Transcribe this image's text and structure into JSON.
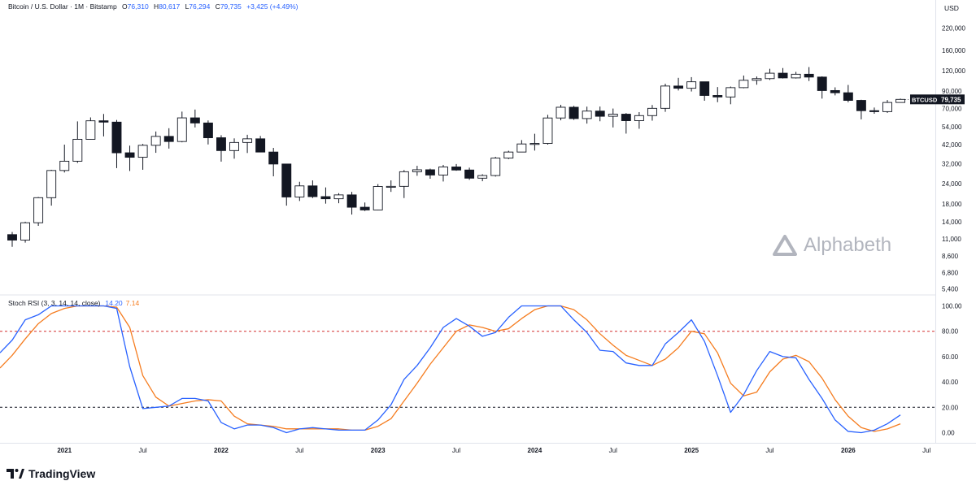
{
  "header": {
    "symbol_desc": "Bitcoin / U.S. Dollar · 1M · Bitstamp",
    "o_label": "O",
    "o_val": "76,310",
    "h_label": "H",
    "h_val": "80,617",
    "l_label": "L",
    "l_val": "76,294",
    "c_label": "C",
    "c_val": "79,735",
    "change": "+3,425 (+4.49%)"
  },
  "price_axis": {
    "unit": "USD",
    "ticks": [
      "220,000",
      "160,000",
      "120,000",
      "90,000",
      "70,000",
      "54,000",
      "42,000",
      "32,000",
      "24,000",
      "18,000",
      "14,000",
      "11,000",
      "8,600",
      "6,800",
      "5,400"
    ]
  },
  "price_label": {
    "symbol": "BTCUSD",
    "value": "79,735"
  },
  "indicator": {
    "title": "Stoch RSI (3, 3, 14, 14, close)",
    "k_value": "14.20",
    "d_value": "7.14",
    "ticks": [
      "100.00",
      "80.00",
      "60.00",
      "40.00",
      "20.00",
      "0.00"
    ]
  },
  "time_axis": [
    "2021",
    "Jul",
    "2022",
    "Jul",
    "2023",
    "Jul",
    "2024",
    "Jul",
    "2025",
    "Jul",
    "2026",
    "Jul"
  ],
  "watermark": "Alphabeth",
  "footer": {
    "brand": "TradingView"
  },
  "colors": {
    "bull": "#ffffff",
    "bear": "#131722",
    "k_line": "#2962ff",
    "d_line": "#f57c1f",
    "band_upper": "#d32f2f",
    "band_lower": "#131722"
  },
  "chart_data": [
    {
      "type": "candlestick",
      "title": "Bitcoin / U.S. Dollar · 1M · Bitstamp",
      "scale": "log",
      "ylim": [
        5000,
        260000
      ],
      "x_start": "2020-09",
      "candles": [
        {
          "t": "2020-09",
          "o": 11650,
          "h": 12100,
          "l": 9800,
          "c": 10780
        },
        {
          "t": "2020-10",
          "o": 10780,
          "h": 14000,
          "l": 10400,
          "c": 13800
        },
        {
          "t": "2020-11",
          "o": 13800,
          "h": 19900,
          "l": 13200,
          "c": 19700
        },
        {
          "t": "2020-12",
          "o": 19700,
          "h": 29300,
          "l": 17600,
          "c": 29000
        },
        {
          "t": "2021-01",
          "o": 29000,
          "h": 41900,
          "l": 28200,
          "c": 33100
        },
        {
          "t": "2021-02",
          "o": 33100,
          "h": 58300,
          "l": 32300,
          "c": 45200
        },
        {
          "t": "2021-03",
          "o": 45200,
          "h": 61700,
          "l": 45100,
          "c": 58800
        },
        {
          "t": "2021-04",
          "o": 58800,
          "h": 64800,
          "l": 47100,
          "c": 57700
        },
        {
          "t": "2021-05",
          "o": 57700,
          "h": 59500,
          "l": 30000,
          "c": 37300
        },
        {
          "t": "2021-06",
          "o": 37300,
          "h": 41300,
          "l": 28800,
          "c": 35000
        },
        {
          "t": "2021-07",
          "o": 35000,
          "h": 42300,
          "l": 29300,
          "c": 41500
        },
        {
          "t": "2021-08",
          "o": 41500,
          "h": 50500,
          "l": 37300,
          "c": 47100
        },
        {
          "t": "2021-09",
          "o": 47100,
          "h": 52900,
          "l": 39600,
          "c": 43800
        },
        {
          "t": "2021-10",
          "o": 43800,
          "h": 67000,
          "l": 43300,
          "c": 61300
        },
        {
          "t": "2021-11",
          "o": 61300,
          "h": 69000,
          "l": 53500,
          "c": 57000
        },
        {
          "t": "2021-12",
          "o": 57000,
          "h": 59100,
          "l": 42000,
          "c": 46200
        },
        {
          "t": "2022-01",
          "o": 46200,
          "h": 47900,
          "l": 32900,
          "c": 38500
        },
        {
          "t": "2022-02",
          "o": 38500,
          "h": 45800,
          "l": 34300,
          "c": 43200
        },
        {
          "t": "2022-03",
          "o": 43200,
          "h": 48200,
          "l": 37200,
          "c": 45500
        },
        {
          "t": "2022-04",
          "o": 45500,
          "h": 47400,
          "l": 37600,
          "c": 37700
        },
        {
          "t": "2022-05",
          "o": 37700,
          "h": 40000,
          "l": 26700,
          "c": 31800
        },
        {
          "t": "2022-06",
          "o": 31800,
          "h": 31900,
          "l": 17600,
          "c": 19900
        },
        {
          "t": "2022-07",
          "o": 19900,
          "h": 24700,
          "l": 18800,
          "c": 23300
        },
        {
          "t": "2022-08",
          "o": 23300,
          "h": 25200,
          "l": 19600,
          "c": 20000
        },
        {
          "t": "2022-09",
          "o": 20000,
          "h": 22800,
          "l": 18100,
          "c": 19400
        },
        {
          "t": "2022-10",
          "o": 19400,
          "h": 21000,
          "l": 18200,
          "c": 20500
        },
        {
          "t": "2022-11",
          "o": 20500,
          "h": 21400,
          "l": 15500,
          "c": 17200
        },
        {
          "t": "2022-12",
          "o": 17200,
          "h": 18400,
          "l": 16300,
          "c": 16550
        },
        {
          "t": "2023-01",
          "o": 16550,
          "h": 23900,
          "l": 16500,
          "c": 23100
        },
        {
          "t": "2023-02",
          "o": 23100,
          "h": 25200,
          "l": 21400,
          "c": 23150
        },
        {
          "t": "2023-03",
          "o": 23150,
          "h": 29200,
          "l": 19600,
          "c": 28500
        },
        {
          "t": "2023-04",
          "o": 28500,
          "h": 31000,
          "l": 26900,
          "c": 29300
        },
        {
          "t": "2023-05",
          "o": 29300,
          "h": 29800,
          "l": 25800,
          "c": 27200
        },
        {
          "t": "2023-06",
          "o": 27200,
          "h": 31400,
          "l": 24800,
          "c": 30500
        },
        {
          "t": "2023-07",
          "o": 30500,
          "h": 31800,
          "l": 28900,
          "c": 29200
        },
        {
          "t": "2023-08",
          "o": 29200,
          "h": 30200,
          "l": 25400,
          "c": 26000
        },
        {
          "t": "2023-09",
          "o": 26000,
          "h": 27500,
          "l": 24900,
          "c": 27000
        },
        {
          "t": "2023-10",
          "o": 27000,
          "h": 35200,
          "l": 26600,
          "c": 34600
        },
        {
          "t": "2023-11",
          "o": 34600,
          "h": 38400,
          "l": 34100,
          "c": 37700
        },
        {
          "t": "2023-12",
          "o": 37700,
          "h": 44700,
          "l": 37600,
          "c": 42300
        },
        {
          "t": "2024-01",
          "o": 42300,
          "h": 48900,
          "l": 38500,
          "c": 42600
        },
        {
          "t": "2024-02",
          "o": 42600,
          "h": 64000,
          "l": 41900,
          "c": 61200
        },
        {
          "t": "2024-03",
          "o": 61200,
          "h": 73800,
          "l": 59200,
          "c": 71300
        },
        {
          "t": "2024-04",
          "o": 71300,
          "h": 72700,
          "l": 59600,
          "c": 60700
        },
        {
          "t": "2024-05",
          "o": 60700,
          "h": 71900,
          "l": 56500,
          "c": 67500
        },
        {
          "t": "2024-06",
          "o": 67500,
          "h": 72000,
          "l": 58400,
          "c": 62700
        },
        {
          "t": "2024-07",
          "o": 62700,
          "h": 70000,
          "l": 53500,
          "c": 64600
        },
        {
          "t": "2024-08",
          "o": 64600,
          "h": 65600,
          "l": 49000,
          "c": 58900
        },
        {
          "t": "2024-09",
          "o": 58900,
          "h": 66500,
          "l": 52500,
          "c": 63300
        },
        {
          "t": "2024-10",
          "o": 63300,
          "h": 73600,
          "l": 58900,
          "c": 70200
        },
        {
          "t": "2024-11",
          "o": 70200,
          "h": 99600,
          "l": 66800,
          "c": 96400
        },
        {
          "t": "2024-12",
          "o": 96400,
          "h": 108300,
          "l": 90500,
          "c": 93400
        },
        {
          "t": "2025-01",
          "o": 93400,
          "h": 109400,
          "l": 89200,
          "c": 102400
        },
        {
          "t": "2025-02",
          "o": 102400,
          "h": 102500,
          "l": 78200,
          "c": 84300
        },
        {
          "t": "2025-03",
          "o": 84300,
          "h": 95000,
          "l": 76600,
          "c": 82500
        },
        {
          "t": "2025-04",
          "o": 82500,
          "h": 95700,
          "l": 74400,
          "c": 94200
        },
        {
          "t": "2025-05",
          "o": 94200,
          "h": 111900,
          "l": 93400,
          "c": 104600
        },
        {
          "t": "2025-06",
          "o": 104600,
          "h": 110400,
          "l": 98200,
          "c": 107100
        },
        {
          "t": "2025-07",
          "o": 107100,
          "h": 123200,
          "l": 105100,
          "c": 115700
        },
        {
          "t": "2025-08",
          "o": 115700,
          "h": 124500,
          "l": 107300,
          "c": 108200
        },
        {
          "t": "2025-09",
          "o": 108200,
          "h": 117900,
          "l": 107300,
          "c": 114000
        },
        {
          "t": "2025-10",
          "o": 114000,
          "h": 126200,
          "l": 103500,
          "c": 109500
        },
        {
          "t": "2025-11",
          "o": 109500,
          "h": 110600,
          "l": 80600,
          "c": 90400
        },
        {
          "t": "2025-12",
          "o": 90400,
          "h": 94600,
          "l": 84400,
          "c": 87600
        },
        {
          "t": "2026-01",
          "o": 87600,
          "h": 97900,
          "l": 76500,
          "c": 78600
        },
        {
          "t": "2026-02",
          "o": 78600,
          "h": 79300,
          "l": 60000,
          "c": 67900
        },
        {
          "t": "2026-03",
          "o": 67900,
          "h": 71000,
          "l": 65000,
          "c": 67000
        },
        {
          "t": "2026-04",
          "o": 67000,
          "h": 79000,
          "l": 65800,
          "c": 76310
        },
        {
          "t": "2026-05",
          "o": 76310,
          "h": 80617,
          "l": 76294,
          "c": 79735
        }
      ]
    },
    {
      "type": "line",
      "title": "Stoch RSI (3, 3, 14, 14, close)",
      "ylim": [
        -8,
        108
      ],
      "bands": [
        80,
        20
      ],
      "x_start": "2020-09",
      "series": [
        {
          "name": "K",
          "values": [
            73,
            89,
            93,
            100,
            100,
            100,
            100,
            100,
            98,
            52,
            19,
            20,
            21,
            27,
            27,
            25,
            8,
            3,
            6,
            6,
            4,
            0,
            3,
            4,
            3,
            2,
            2,
            2,
            10,
            22,
            42,
            53,
            67,
            83,
            90,
            84,
            76,
            79,
            91,
            100,
            100,
            100,
            100,
            89,
            79,
            65,
            64,
            55,
            53,
            53,
            70,
            79,
            89,
            72,
            45,
            16,
            30,
            49,
            64,
            60,
            59,
            42,
            27,
            10,
            1,
            0,
            2,
            7,
            14
          ]
        },
        {
          "name": "D",
          "values": [
            61,
            74,
            86,
            94,
            98,
            100,
            100,
            100,
            99,
            83,
            45,
            28,
            21,
            23,
            25,
            26,
            25,
            13,
            7,
            6,
            5,
            3,
            3,
            3,
            3,
            3,
            2,
            2,
            5,
            11,
            25,
            39,
            54,
            67,
            80,
            85,
            83,
            80,
            82,
            90,
            97,
            100,
            100,
            97,
            89,
            78,
            69,
            61,
            57,
            53,
            58,
            67,
            80,
            78,
            63,
            39,
            29,
            32,
            48,
            58,
            61,
            56,
            43,
            26,
            13,
            4,
            1,
            3,
            7
          ]
        }
      ]
    }
  ]
}
